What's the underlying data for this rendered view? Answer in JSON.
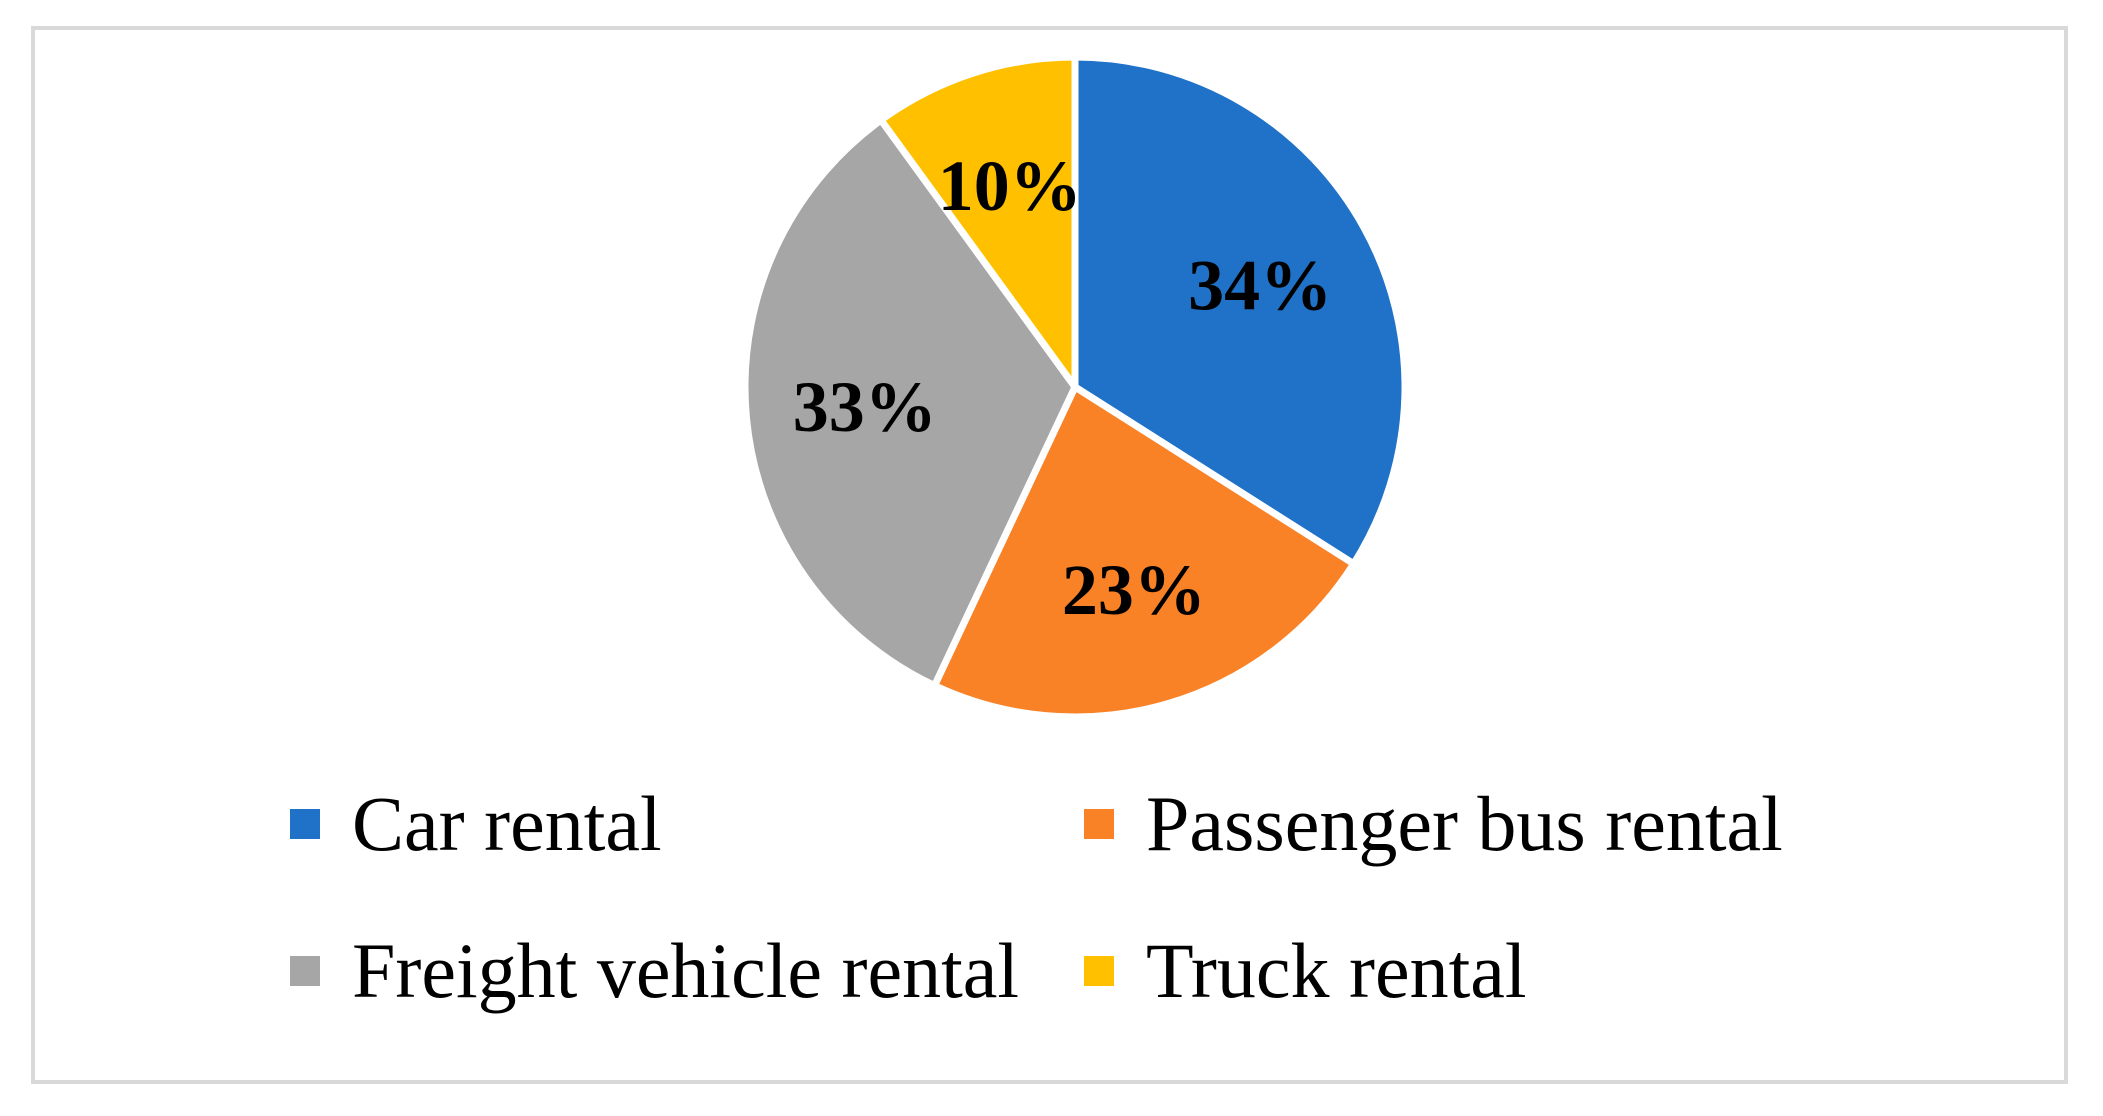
{
  "chart_data": {
    "type": "pie",
    "title": "",
    "categories": [
      "Car rental",
      "Passenger bus rental",
      "Freight vehicle rental",
      "Truck rental"
    ],
    "values": [
      34,
      23,
      33,
      10
    ],
    "labels": [
      "34%",
      "23%",
      "33%",
      "10%"
    ],
    "colors": [
      "#1f72c7",
      "#f98126",
      "#a6a6a6",
      "#ffc000"
    ],
    "legend_position": "bottom"
  },
  "legend": {
    "items": [
      {
        "label": "Car rental",
        "color": "#1f72c7"
      },
      {
        "label": "Passenger bus rental",
        "color": "#f98126"
      },
      {
        "label": "Freight vehicle rental",
        "color": "#a6a6a6"
      },
      {
        "label": "Truck rental",
        "color": "#ffc000"
      }
    ]
  }
}
